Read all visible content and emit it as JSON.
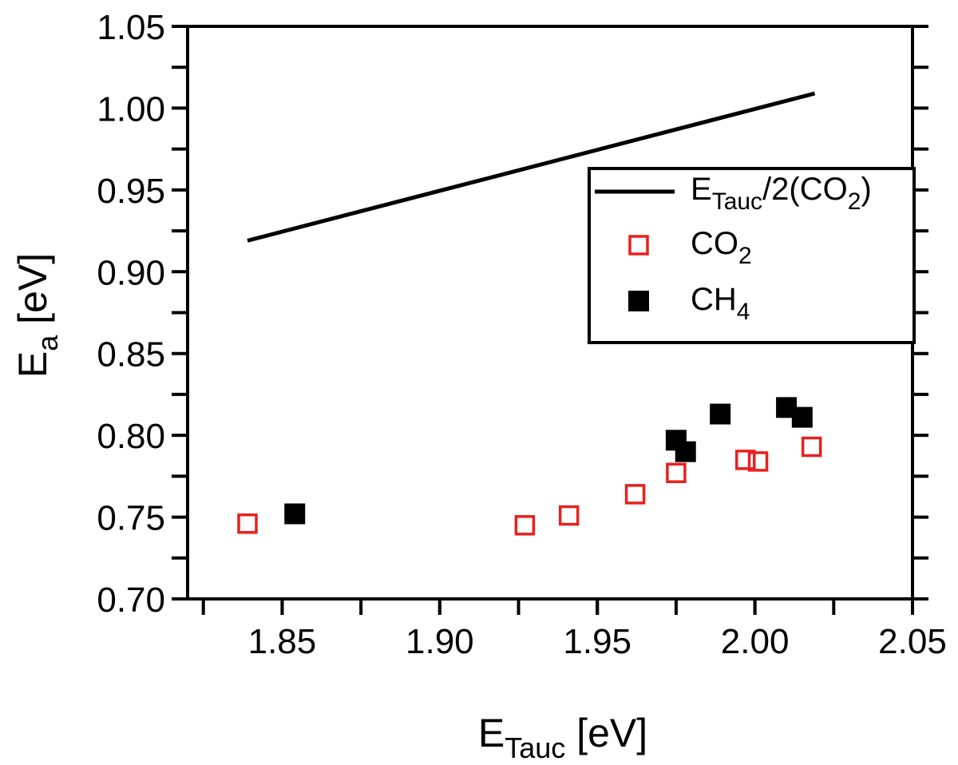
{
  "chart_data": {
    "type": "scatter",
    "xlabel": {
      "main": "E",
      "sub": "Tauc",
      "rest": " [eV]"
    },
    "ylabel": {
      "main": "E",
      "sub": "a",
      "rest": " [eV]"
    },
    "xlim": [
      1.82,
      2.05
    ],
    "ylim": [
      0.7,
      1.05
    ],
    "xticks": [
      1.85,
      1.9,
      1.95,
      2.0,
      2.05
    ],
    "xtick_labels": [
      "1.85",
      "1.90",
      "1.95",
      "2.00",
      "2.05"
    ],
    "yticks": [
      0.7,
      0.75,
      0.8,
      0.85,
      0.9,
      0.95,
      1.0,
      1.05
    ],
    "ytick_labels": [
      "0.70",
      "0.75",
      "0.80",
      "0.85",
      "0.90",
      "0.95",
      "1.00",
      "1.05"
    ],
    "grid": false,
    "legend_position": "upper-right",
    "series": [
      {
        "name": {
          "main": "E",
          "sub": "Tauc",
          "rest": "/2(CO",
          "sub2": "2",
          "rest2": ")"
        },
        "kind": "line",
        "color": "#000000",
        "x": [
          1.839,
          2.019
        ],
        "y": [
          0.919,
          1.009
        ]
      },
      {
        "name": {
          "main": "CO",
          "sub": "2"
        },
        "kind": "open-square",
        "color": "#e8201f",
        "x": [
          1.839,
          1.927,
          1.941,
          1.962,
          1.975,
          1.997,
          2.001,
          2.018
        ],
        "y": [
          0.746,
          0.745,
          0.751,
          0.764,
          0.777,
          0.785,
          0.784,
          0.793
        ]
      },
      {
        "name": {
          "main": "CH",
          "sub": "4"
        },
        "kind": "filled-square",
        "color": "#000000",
        "x": [
          1.854,
          1.975,
          1.978,
          1.989,
          2.01,
          2.015
        ],
        "y": [
          0.752,
          0.797,
          0.79,
          0.813,
          0.817,
          0.811
        ]
      }
    ]
  }
}
